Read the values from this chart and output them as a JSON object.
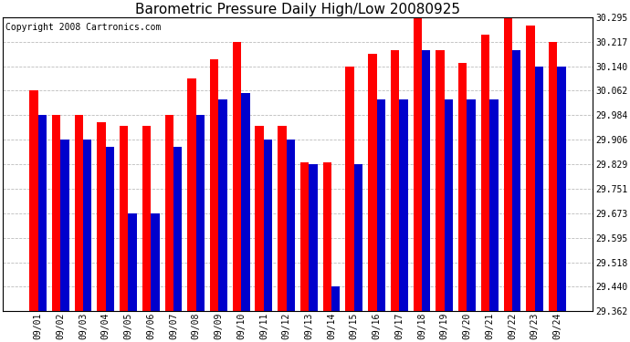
{
  "title": "Barometric Pressure Daily High/Low 20080925",
  "copyright": "Copyright 2008 Cartronics.com",
  "dates": [
    "09/01",
    "09/02",
    "09/03",
    "09/04",
    "09/05",
    "09/06",
    "09/07",
    "09/08",
    "09/09",
    "09/10",
    "09/11",
    "09/12",
    "09/13",
    "09/14",
    "09/15",
    "09/16",
    "09/17",
    "09/18",
    "09/19",
    "09/20",
    "09/21",
    "09/22",
    "09/23",
    "09/24"
  ],
  "highs": [
    30.062,
    29.984,
    29.984,
    29.962,
    29.95,
    29.95,
    29.984,
    30.1,
    30.162,
    30.217,
    29.95,
    29.95,
    29.835,
    29.835,
    30.14,
    30.18,
    30.19,
    30.295,
    30.19,
    30.15,
    30.24,
    30.295,
    30.27,
    30.217
  ],
  "lows": [
    29.984,
    29.906,
    29.906,
    29.885,
    29.673,
    29.673,
    29.885,
    29.984,
    30.035,
    30.055,
    29.906,
    29.906,
    29.829,
    29.44,
    29.829,
    30.035,
    30.035,
    30.19,
    30.035,
    30.035,
    30.035,
    30.19,
    30.14,
    30.14
  ],
  "ylim": [
    29.362,
    30.295
  ],
  "yticks": [
    29.362,
    29.44,
    29.518,
    29.595,
    29.673,
    29.751,
    29.829,
    29.906,
    29.984,
    30.062,
    30.14,
    30.217,
    30.295
  ],
  "bar_color_high": "#ff0000",
  "bar_color_low": "#0000cc",
  "background_color": "#ffffff",
  "grid_color": "#bbbbbb",
  "title_fontsize": 11,
  "copyright_fontsize": 7,
  "bar_width": 0.38,
  "bar_baseline": 29.362
}
